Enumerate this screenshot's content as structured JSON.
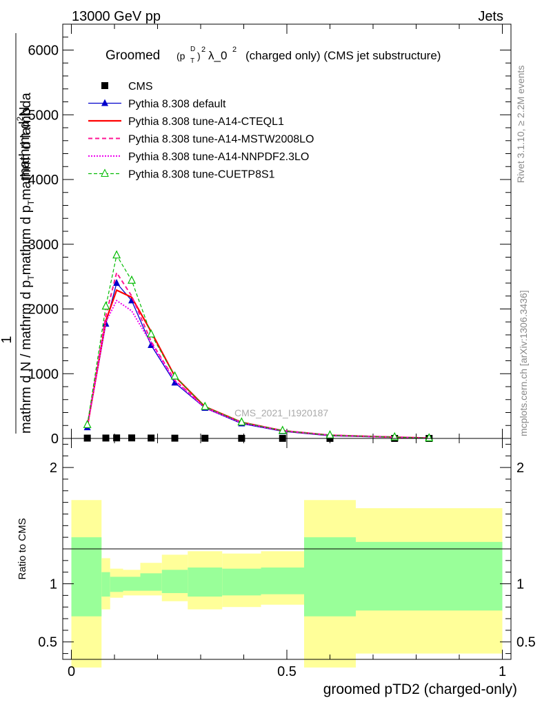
{
  "header": {
    "left": "13000 GeV pp",
    "right": "Jets"
  },
  "side_labels": {
    "rivet": "Rivet 3.1.10, ≥ 2.2M events",
    "mcplots": "mcplots.cern.ch [arXiv:1306.3436]"
  },
  "watermark": "CMS_2021_I1920187",
  "colors": {
    "cms": "#000000",
    "default": "#0000cc",
    "cteql1": "#ff0000",
    "mstw": "#ff1493",
    "nnpdf": "#ee00ee",
    "cuetp": "#00bb00",
    "band_yellow": "#ffff99",
    "band_green": "#99ff99"
  },
  "chart_data": [
    {
      "type": "line",
      "title_parts": {
        "pre": "Groomed",
        "p": "(p",
        "sup_d": "D",
        "sub_t": "T",
        "close": ")",
        "sq": "2",
        "lambda": "λ_0",
        "sq2": "2",
        "post": "(charged only) (CMS jet substructure)"
      },
      "ylabel_numerator": "1",
      "ylabel_parts": {
        "top": "mathrm d",
        "top_sup": "2",
        "top_N": "N",
        "bottom": "mathrm d N / mathrm d p",
        "bottom_sub": "T",
        "bottom2": "mathrm d p",
        "bottom2_sub": "T",
        "bottom3": "mathrm d lambda"
      },
      "xlim": [
        -0.02,
        1.02
      ],
      "ylim": [
        0,
        6400
      ],
      "yticks": [
        0,
        1000,
        2000,
        3000,
        4000,
        5000,
        6000
      ],
      "ytick_labels": [
        "0",
        "1000",
        "2000",
        "3000",
        "4000",
        "5000",
        "6000"
      ],
      "x": [
        0.037,
        0.08,
        0.105,
        0.14,
        0.185,
        0.24,
        0.31,
        0.395,
        0.49,
        0.6,
        0.75,
        0.83
      ],
      "series": [
        {
          "name": "CMS",
          "values": [
            5,
            6,
            8,
            8,
            6,
            4,
            3,
            2,
            1,
            0.5,
            0.3,
            0.2
          ]
        },
        {
          "name": "Pythia 8.308 default",
          "values": [
            170,
            1770,
            2400,
            2130,
            1440,
            860,
            470,
            230,
            110,
            40,
            15,
            5
          ]
        },
        {
          "name": "Pythia 8.308 tune-A14-CTEQL1",
          "values": [
            180,
            1820,
            2290,
            2180,
            1650,
            960,
            490,
            250,
            120,
            50,
            20,
            5
          ]
        },
        {
          "name": "Pythia 8.308 tune-A14-MSTW2008LO",
          "values": [
            190,
            1900,
            2560,
            2200,
            1500,
            900,
            480,
            250,
            120,
            50,
            20,
            5
          ]
        },
        {
          "name": "Pythia 8.308 tune-A14-NNPDF2.3LO",
          "values": [
            180,
            1800,
            2130,
            1970,
            1470,
            890,
            470,
            240,
            120,
            50,
            20,
            5
          ]
        },
        {
          "name": "Pythia 8.308 tune-CUETP8S1",
          "values": [
            210,
            2040,
            2830,
            2440,
            1610,
            960,
            490,
            250,
            120,
            50,
            20,
            5
          ]
        }
      ]
    },
    {
      "type": "area",
      "ylabel": "Ratio to CMS",
      "xlabel": "groomed pTD2 (charged-only)",
      "xlim": [
        -0.02,
        1.02
      ],
      "ylim": [
        0.35,
        2.25
      ],
      "yticks": [
        0.5,
        1,
        2
      ],
      "ytick_labels": [
        "0.5",
        "1",
        "2"
      ],
      "xticks": [
        0,
        0.5,
        1
      ],
      "xtick_labels": [
        "0",
        "0.5",
        "1"
      ],
      "bins": [
        0,
        0.07,
        0.09,
        0.12,
        0.16,
        0.21,
        0.27,
        0.35,
        0.44,
        0.54,
        0.66,
        1.0
      ],
      "yellow_low": [
        0.28,
        0.78,
        0.88,
        0.9,
        0.9,
        0.85,
        0.78,
        0.8,
        0.82,
        0.28,
        0.4
      ],
      "yellow_high": [
        1.72,
        1.22,
        1.13,
        1.12,
        1.18,
        1.25,
        1.28,
        1.26,
        1.28,
        1.72,
        1.65
      ],
      "green_low": [
        0.72,
        0.89,
        0.93,
        0.94,
        0.94,
        0.92,
        0.89,
        0.9,
        0.91,
        0.72,
        0.77
      ],
      "green_high": [
        1.4,
        1.1,
        1.06,
        1.06,
        1.09,
        1.12,
        1.14,
        1.13,
        1.14,
        1.4,
        1.36
      ]
    }
  ]
}
